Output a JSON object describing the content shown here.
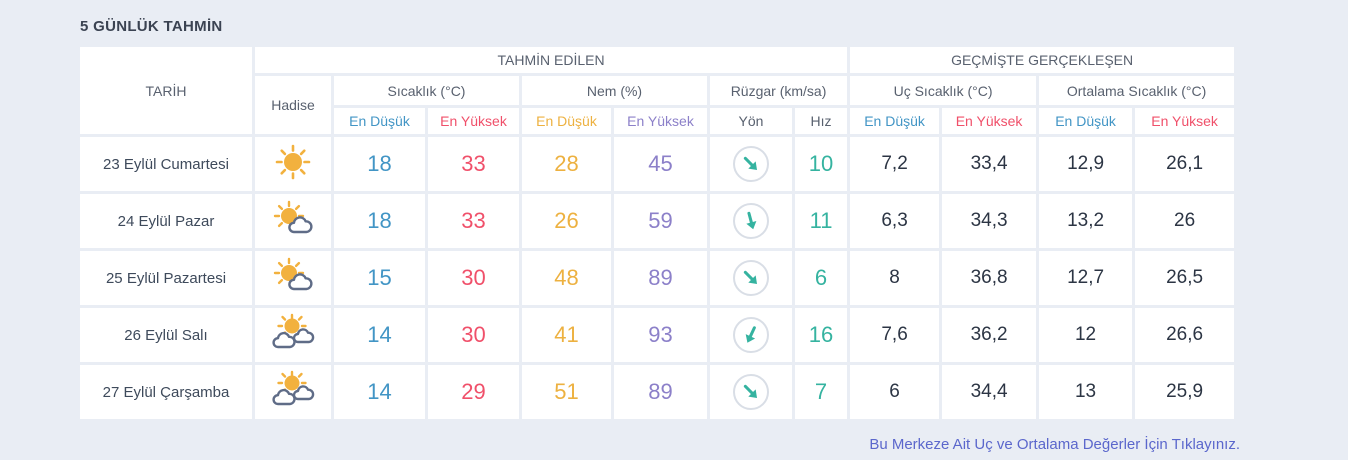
{
  "page": {
    "title": "5 GÜNLÜK TAHMİN",
    "footer_link": "Bu Merkeze Ait Uç ve Ortalama Değerler İçin Tıklayınız."
  },
  "table": {
    "headers": {
      "date": "TARİH",
      "condition": "Hadise",
      "predicted": "TAHMİN EDİLEN",
      "past": "GEÇMİŞTE GERÇEKLEŞEN",
      "temperature": "Sıcaklık (°C)",
      "humidity": "Nem (%)",
      "wind": "Rüzgar (km/sa)",
      "extreme_temp": "Uç Sıcaklık (°C)",
      "average_temp": "Ortalama Sıcaklık (°C)",
      "min": "En Düşük",
      "max": "En Yüksek",
      "direction": "Yön",
      "speed": "Hız"
    },
    "rows": [
      {
        "date": "23 Eylül Cumartesi",
        "icon": "sunny",
        "temp_min": "18",
        "temp_max": "33",
        "hum_min": "28",
        "hum_max": "45",
        "wind_rotation": -45,
        "wind_speed": "10",
        "ext_min": "7,2",
        "ext_max": "33,4",
        "avg_min": "12,9",
        "avg_max": "26,1"
      },
      {
        "date": "24 Eylül Pazar",
        "icon": "mostly-sunny",
        "temp_min": "18",
        "temp_max": "33",
        "hum_min": "26",
        "hum_max": "59",
        "wind_rotation": -15,
        "wind_speed": "11",
        "ext_min": "6,3",
        "ext_max": "34,3",
        "avg_min": "13,2",
        "avg_max": "26"
      },
      {
        "date": "25 Eylül Pazartesi",
        "icon": "mostly-sunny",
        "temp_min": "15",
        "temp_max": "30",
        "hum_min": "48",
        "hum_max": "89",
        "wind_rotation": -45,
        "wind_speed": "6",
        "ext_min": "8",
        "ext_max": "36,8",
        "avg_min": "12,7",
        "avg_max": "26,5"
      },
      {
        "date": "26 Eylül Salı",
        "icon": "partly-cloudy",
        "temp_min": "14",
        "temp_max": "30",
        "hum_min": "41",
        "hum_max": "93",
        "wind_rotation": 25,
        "wind_speed": "16",
        "ext_min": "7,6",
        "ext_max": "36,2",
        "avg_min": "12",
        "avg_max": "26,6"
      },
      {
        "date": "27 Eylül Çarşamba",
        "icon": "partly-cloudy",
        "temp_min": "14",
        "temp_max": "29",
        "hum_min": "51",
        "hum_max": "89",
        "wind_rotation": -45,
        "wind_speed": "7",
        "ext_min": "6",
        "ext_max": "34,4",
        "avg_min": "13",
        "avg_max": "25,9"
      }
    ],
    "colors": {
      "min_temp": "#4295c5",
      "max_temp": "#f0506a",
      "min_humidity": "#edb140",
      "max_humidity": "#8c80c9",
      "wind_speed": "#35b3a0",
      "link": "#5b67cc",
      "background": "#e9edf4"
    }
  }
}
